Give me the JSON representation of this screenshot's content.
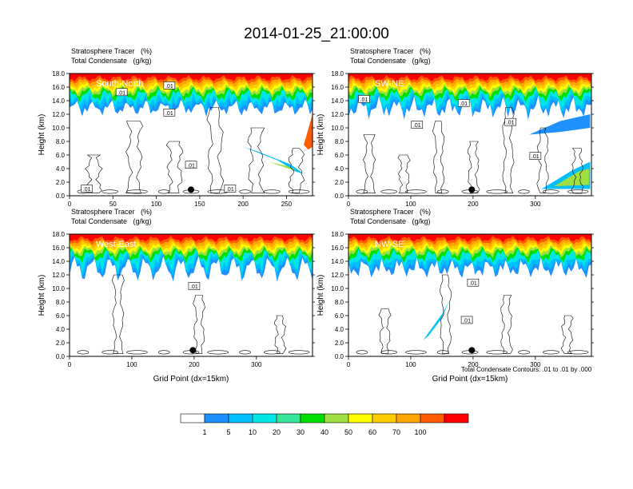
{
  "title": "2014-01-25_21:00:00",
  "colors": {
    "levels": [
      "#ffffff",
      "#1e90ff",
      "#00bfff",
      "#00e6e6",
      "#33e699",
      "#00e000",
      "#9fe040",
      "#ffff00",
      "#ffcc00",
      "#ffa500",
      "#ff5a00",
      "#ff0000"
    ]
  },
  "footer": {
    "contour_note": "Total Condensate Contours: .01 to .01 by .000",
    "x_title": "Grid Point (dx=15km)"
  },
  "colorbar": {
    "labels": [
      "1",
      "5",
      "10",
      "20",
      "30",
      "40",
      "50",
      "60",
      "70",
      "100"
    ]
  },
  "chart_data": [
    {
      "type": "heatmap",
      "panel_label": "South-North",
      "subtitle_line1": "Stratosphere Tracer   (%)",
      "subtitle_line2": "Total Condensate   (g/kg)",
      "ylabel": "Height (km)",
      "xlabel": "",
      "xlim": [
        0,
        280
      ],
      "ylim": [
        0,
        18
      ],
      "xticks": [
        0,
        50,
        100,
        150,
        200,
        250
      ],
      "yticks": [
        0.0,
        2.0,
        4.0,
        6.0,
        8.0,
        10.0,
        12.0,
        14.0,
        16.0,
        18.0
      ],
      "contour_labels": [
        ".01",
        ".01",
        ".01",
        ".01",
        ".01",
        ".01"
      ],
      "marker_x": 140
    },
    {
      "type": "heatmap",
      "panel_label": "SW-NE",
      "subtitle_line1": "Stratosphere Tracer   (%)",
      "subtitle_line2": "Total Condensate   (g/kg)",
      "ylabel": "Height (km)",
      "xlabel": "",
      "xlim": [
        0,
        390
      ],
      "ylim": [
        0,
        18
      ],
      "xticks": [
        0,
        100,
        200,
        300
      ],
      "yticks": [
        0.0,
        2.0,
        4.0,
        6.0,
        8.0,
        10.0,
        12.0,
        14.0,
        16.0,
        18.0
      ],
      "contour_labels": [
        ".01",
        ".01",
        ".01",
        ".01",
        ".01"
      ],
      "marker_x": 198
    },
    {
      "type": "heatmap",
      "panel_label": "West-East",
      "subtitle_line1": "Stratosphere Tracer   (%)",
      "subtitle_line2": "Total Condensate   (g/kg)",
      "ylabel": "Height (km)",
      "xlabel": "Grid Point (dx=15km)",
      "xlim": [
        0,
        390
      ],
      "ylim": [
        0,
        18
      ],
      "xticks": [
        0,
        100,
        200,
        300
      ],
      "yticks": [
        0.0,
        2.0,
        4.0,
        6.0,
        8.0,
        10.0,
        12.0,
        14.0,
        16.0,
        18.0
      ],
      "contour_labels": [
        ".01"
      ],
      "marker_x": 198
    },
    {
      "type": "heatmap",
      "panel_label": "NW-SE",
      "subtitle_line1": "Stratosphere Tracer   (%)",
      "subtitle_line2": "Total Condensate   (g/kg)",
      "ylabel": "Height (km)",
      "xlabel": "Grid Point (dx=15km)",
      "xlim": [
        0,
        390
      ],
      "ylim": [
        0,
        18
      ],
      "xticks": [
        0,
        100,
        200,
        300
      ],
      "yticks": [
        0.0,
        2.0,
        4.0,
        6.0,
        8.0,
        10.0,
        12.0,
        14.0,
        16.0,
        18.0
      ],
      "contour_labels": [
        ".01",
        ".01"
      ],
      "marker_x": 198
    }
  ]
}
